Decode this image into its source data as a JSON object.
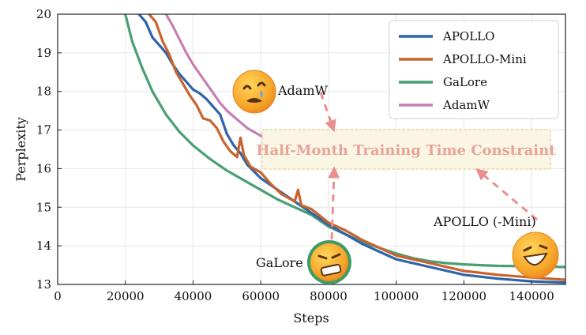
{
  "chart_data": {
    "type": "line",
    "title": "",
    "xlabel": "Steps",
    "ylabel": "Perplexity",
    "xlim": [
      0,
      150000
    ],
    "ylim": [
      13,
      20
    ],
    "xticks": [
      0,
      20000,
      40000,
      60000,
      80000,
      100000,
      120000,
      140000
    ],
    "yticks": [
      13,
      14,
      15,
      16,
      17,
      18,
      19,
      20
    ],
    "grid": true,
    "legend_position": "top-right",
    "series": [
      {
        "name": "APOLLO",
        "color": "#2e64a8",
        "x": [
          24000,
          26000,
          28000,
          30000,
          32000,
          34000,
          36000,
          38000,
          40000,
          42000,
          44000,
          46000,
          48000,
          50000,
          52000,
          54000,
          56000,
          60000,
          65000,
          70000,
          75000,
          80000,
          85000,
          90000,
          95000,
          100000,
          110000,
          120000,
          130000,
          140000,
          150000
        ],
        "y": [
          20.0,
          19.8,
          19.4,
          19.2,
          19.0,
          18.7,
          18.45,
          18.25,
          18.05,
          17.95,
          17.8,
          17.6,
          17.4,
          16.9,
          16.6,
          16.4,
          16.1,
          15.75,
          15.45,
          15.15,
          14.85,
          14.55,
          14.3,
          14.05,
          13.85,
          13.65,
          13.45,
          13.25,
          13.15,
          13.08,
          13.05
        ]
      },
      {
        "name": "APOLLO-Mini",
        "color": "#c9632d",
        "x": [
          27000,
          29000,
          31000,
          33000,
          35000,
          37000,
          39000,
          41000,
          43000,
          45000,
          47000,
          49000,
          51000,
          53000,
          54000,
          55000,
          57000,
          60000,
          63000,
          66000,
          70000,
          71000,
          72000,
          75000,
          80000,
          85000,
          90000,
          95000,
          100000,
          110000,
          120000,
          130000,
          140000,
          150000
        ],
        "y": [
          20.0,
          19.8,
          19.3,
          18.95,
          18.5,
          18.2,
          17.9,
          17.65,
          17.3,
          17.25,
          17.05,
          16.7,
          16.45,
          16.3,
          16.8,
          16.35,
          16.05,
          15.9,
          15.6,
          15.35,
          15.15,
          15.45,
          15.05,
          14.95,
          14.6,
          14.4,
          14.15,
          13.95,
          13.75,
          13.55,
          13.35,
          13.25,
          13.18,
          13.12
        ]
      },
      {
        "name": "GaLore",
        "color": "#4a9e74",
        "x": [
          20000,
          22000,
          25000,
          28000,
          32000,
          36000,
          40000,
          45000,
          50000,
          55000,
          60000,
          65000,
          70000,
          75000,
          80000,
          85000,
          90000,
          95000,
          100000,
          105000,
          110000,
          115000,
          120000,
          125000,
          130000,
          140000,
          150000
        ],
        "y": [
          20.0,
          19.3,
          18.6,
          18.0,
          17.4,
          16.95,
          16.6,
          16.25,
          15.95,
          15.7,
          15.45,
          15.2,
          15.0,
          14.8,
          14.5,
          14.3,
          14.1,
          13.95,
          13.8,
          13.68,
          13.6,
          13.55,
          13.52,
          13.5,
          13.48,
          13.47,
          13.45
        ]
      },
      {
        "name": "AdamW",
        "color": "#c67fb4",
        "x": [
          32000,
          34000,
          36000,
          38000,
          40000,
          42000,
          44000,
          46000,
          48000,
          50000,
          52000,
          54000,
          56000,
          58000,
          60000,
          61000
        ],
        "y": [
          20.0,
          19.7,
          19.35,
          19.0,
          18.7,
          18.45,
          18.2,
          17.95,
          17.7,
          17.5,
          17.35,
          17.2,
          17.05,
          16.95,
          16.85,
          16.8
        ]
      }
    ],
    "annotations": {
      "banner": "Half-Month Training Time Constraint",
      "adamw_label": "AdamW",
      "galore_label": "GaLore",
      "apollo_label": "APOLLO (-Mini)"
    }
  }
}
